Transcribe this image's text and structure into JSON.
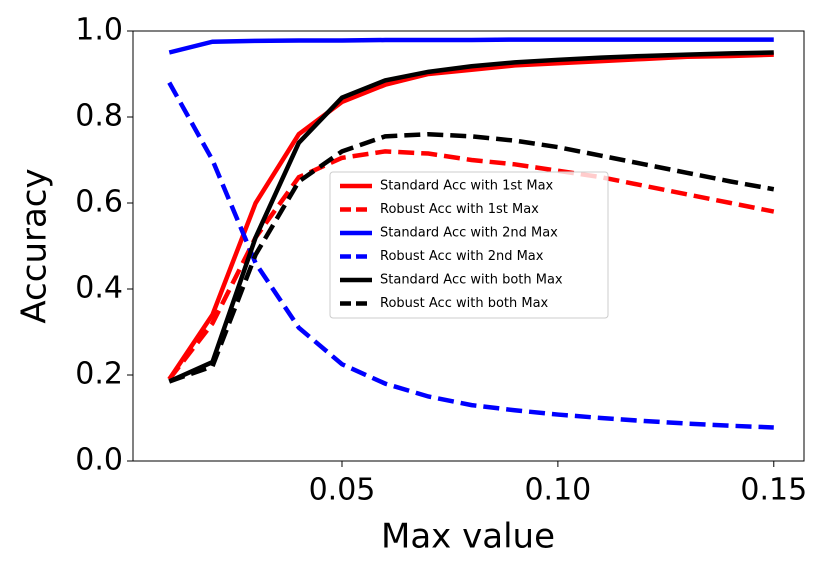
{
  "chart_data": {
    "type": "line",
    "x_label": "Max value",
    "y_label": "Accuracy",
    "x": [
      0.01,
      0.02,
      0.03,
      0.04,
      0.05,
      0.06,
      0.07,
      0.08,
      0.09,
      0.1,
      0.11,
      0.12,
      0.13,
      0.14,
      0.15
    ],
    "series": [
      {
        "name": "Standard Acc with 1st Max",
        "color": "#ff0000",
        "dashed": false,
        "values": [
          0.19,
          0.34,
          0.6,
          0.76,
          0.835,
          0.875,
          0.9,
          0.91,
          0.92,
          0.925,
          0.93,
          0.935,
          0.94,
          0.942,
          0.945
        ]
      },
      {
        "name": "Robust Acc with 1st Max",
        "color": "#ff0000",
        "dashed": true,
        "values": [
          0.19,
          0.32,
          0.52,
          0.66,
          0.705,
          0.72,
          0.715,
          0.7,
          0.69,
          0.675,
          0.66,
          0.64,
          0.62,
          0.6,
          0.58
        ]
      },
      {
        "name": "Standard Acc with 2nd Max",
        "color": "#0000ff",
        "dashed": false,
        "values": [
          0.95,
          0.975,
          0.977,
          0.978,
          0.978,
          0.979,
          0.979,
          0.979,
          0.98,
          0.98,
          0.98,
          0.98,
          0.98,
          0.98,
          0.98
        ]
      },
      {
        "name": "Robust Acc with 2nd Max",
        "color": "#0000ff",
        "dashed": true,
        "values": [
          0.88,
          0.7,
          0.46,
          0.31,
          0.225,
          0.18,
          0.15,
          0.13,
          0.118,
          0.108,
          0.1,
          0.093,
          0.087,
          0.082,
          0.078
        ]
      },
      {
        "name": "Standard Acc with both Max",
        "color": "#000000",
        "dashed": false,
        "values": [
          0.185,
          0.23,
          0.52,
          0.74,
          0.845,
          0.885,
          0.905,
          0.918,
          0.927,
          0.933,
          0.938,
          0.942,
          0.945,
          0.948,
          0.95
        ]
      },
      {
        "name": "Robust Acc with both Max",
        "color": "#000000",
        "dashed": true,
        "values": [
          0.185,
          0.22,
          0.48,
          0.65,
          0.72,
          0.755,
          0.76,
          0.755,
          0.745,
          0.73,
          0.71,
          0.69,
          0.67,
          0.65,
          0.632
        ]
      }
    ],
    "xlim": [
      0.0016,
      0.157
    ],
    "ylim": [
      0,
      1
    ],
    "xticks": [
      0.05,
      {
        "value": 0.1,
        "label": "0.10"
      },
      0.15
    ],
    "yticks": [
      {
        "value": 0,
        "label": "0.0"
      },
      0.2,
      0.4,
      0.6,
      0.8,
      {
        "value": 1,
        "label": "1.0"
      }
    ],
    "grid": false,
    "legend": "center"
  }
}
